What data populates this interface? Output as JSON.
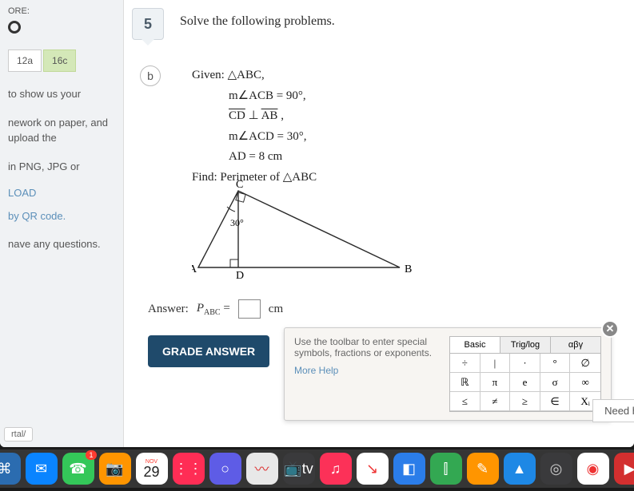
{
  "sidebar": {
    "score_label": "ORE:",
    "boxes": [
      {
        "label": "12a",
        "active": false
      },
      {
        "label": "16c",
        "active": true
      }
    ],
    "lines": [
      "to show us your",
      "nework on paper, and upload the",
      "in PNG, JPG or"
    ],
    "load_label": "LOAD",
    "qr_label": "by QR code.",
    "questions_label": "nave any questions."
  },
  "question": {
    "number": "5",
    "title": "Solve the following problems.",
    "part": "b",
    "given_label": "Given:",
    "triangle_name": "ABC,",
    "lines": {
      "l1": "m∠ACB = 90°,",
      "l2a": "CD",
      "l2b": "AB",
      "l3": "m∠ACD = 30°,",
      "l4": "AD = 8 cm"
    },
    "find_label": "Find: Perimeter of △ABC"
  },
  "triangle": {
    "labels": {
      "A": "A",
      "B": "B",
      "C": "C",
      "D": "D"
    },
    "angle_label": "30°",
    "points": {
      "A": [
        8,
        110
      ],
      "D": [
        58,
        110
      ],
      "B": [
        260,
        110
      ],
      "C": [
        58,
        14
      ]
    },
    "stroke": "#2a2a2a",
    "stroke_width": 1.4
  },
  "answer": {
    "label": "Answer:",
    "expr": "P",
    "sub": "ABC",
    "eq": "=",
    "unit": "cm"
  },
  "grade_button": "GRADE ANSWER",
  "toolbar": {
    "text": "Use the toolbar to enter special symbols, fractions or exponents.",
    "more_help": "More Help",
    "tabs": [
      "Basic",
      "Trig/log",
      "αβγ"
    ],
    "grid": [
      [
        "÷",
        "|",
        "·",
        "°",
        "∅"
      ],
      [
        "ℝ",
        "π",
        "e",
        "σ",
        "∞"
      ],
      [
        "≤",
        "≠",
        "≥",
        "∈",
        "Xᵢ"
      ]
    ]
  },
  "need_help": "Need h",
  "portal": "rtal/",
  "dock": {
    "calendar": {
      "month": "NOV",
      "day": "29"
    },
    "items": [
      {
        "color": "#2b6cb0",
        "icon": "⌘"
      },
      {
        "color": "#0a84ff",
        "icon": "✉"
      },
      {
        "color": "#34c759",
        "icon": "☎",
        "badge": "1"
      },
      {
        "color": "#ff9500",
        "icon": "📷"
      },
      {
        "color": "#ffffff",
        "icon": "cal"
      },
      {
        "color": "#ff2d55",
        "icon": "⋮⋮"
      },
      {
        "color": "#5e5ce6",
        "icon": "○"
      },
      {
        "color": "#e8e8e8",
        "icon": "〰",
        "text_color": "#d33"
      },
      {
        "color": "#3a3a3c",
        "icon": "📺tv",
        "text_color": "#fff"
      },
      {
        "color": "#fc3158",
        "icon": "♫"
      },
      {
        "color": "#ffffff",
        "icon": "↘",
        "text_color": "#e33"
      },
      {
        "color": "#2b7de9",
        "icon": "◧"
      },
      {
        "color": "#33a852",
        "icon": "⫿",
        "text_color": "#fff"
      },
      {
        "color": "#ff9500",
        "icon": "✎"
      },
      {
        "color": "#1e88e5",
        "icon": "▲"
      },
      {
        "color": "#3a3a3c",
        "icon": "◎",
        "text_color": "#ccc"
      },
      {
        "color": "#ffffff",
        "icon": "◉",
        "text_color": "#e33"
      },
      {
        "color": "#d32f2f",
        "icon": "▶"
      }
    ]
  }
}
